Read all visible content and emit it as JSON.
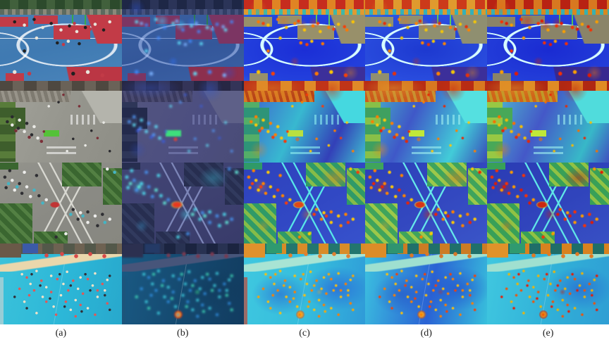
{
  "figure": {
    "type": "qualitative comparison grid, 4 scene rows by 5 method columns",
    "columns": [
      {
        "id": "a",
        "label": "(a)",
        "content": "original aerial/drone image"
      },
      {
        "id": "b",
        "label": "(b)",
        "content": "dark blue-tinted overlay with sparse cyan/green point-attention hotspots"
      },
      {
        "id": "c",
        "label": "(c)",
        "content": "dense jet-colormap attention/density heatmap"
      },
      {
        "id": "d",
        "label": "(d)",
        "content": "dense jet-colormap attention/density heatmap, warmer response"
      },
      {
        "id": "e",
        "label": "(e)",
        "content": "dense jet-colormap attention/density heatmap, strongest red responses on targets"
      }
    ],
    "rows": [
      {
        "id": "1",
        "scene": "outdoor basketball courts with players: blue court, red zones, green hoops, crowd at top"
      },
      {
        "id": "2",
        "scene": "aerial street plaza: gray pavement, tree row and parked cars on left, green bus, crosswalks"
      },
      {
        "id": "3",
        "scene": "top-down road intersection: crossing gray roads, green tree corners, vehicles, red bus at center"
      },
      {
        "id": "4",
        "scene": "water-park wave pool crowded with swimmers: turquoise water, sand beach, red umbrellas, buildings top-left"
      }
    ],
    "palette": {
      "court_blue": "#3f7ab2",
      "court_red": "#c23b47",
      "pavement_gray": "#9b9b93",
      "pool_turquoise": "#2cb7d8",
      "overlay_indigo": "#4c4e80",
      "heat_blue": "#2742e0",
      "heat_cyan": "#3fd4e0",
      "heat_yellow": "#e8c93a",
      "heat_orange": "#e08424",
      "heat_red": "#c62c1e",
      "caption_text": "#1a1a1a",
      "background": "#ffffff"
    }
  }
}
